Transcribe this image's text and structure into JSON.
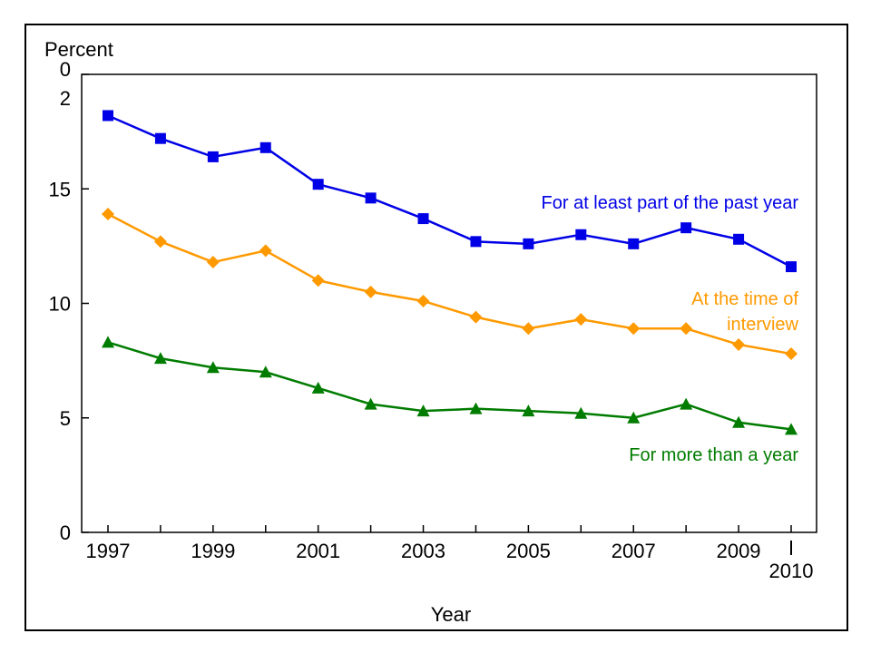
{
  "chart_data": {
    "type": "line",
    "ylabel": "Percent",
    "xlabel": "Year",
    "ylim": [
      0,
      20
    ],
    "y_ticks": [
      0,
      5,
      10,
      15,
      20
    ],
    "y_tick_labels": [
      "0",
      "5",
      "10",
      "15",
      "0\n2"
    ],
    "x": [
      1997,
      1998,
      1999,
      2000,
      2001,
      2002,
      2003,
      2004,
      2005,
      2006,
      2007,
      2008,
      2009,
      2010
    ],
    "x_tick_labels": [
      {
        "year": 1997,
        "label": "1997"
      },
      {
        "year": 1999,
        "label": "1999"
      },
      {
        "year": 2001,
        "label": "2001"
      },
      {
        "year": 2003,
        "label": "2003"
      },
      {
        "year": 2005,
        "label": "2005"
      },
      {
        "year": 2007,
        "label": "2007"
      },
      {
        "year": 2009,
        "label": "2009"
      },
      {
        "year": 2010,
        "label": "2010"
      }
    ],
    "grid": false,
    "series": [
      {
        "name": "For at least part of the past year",
        "color": "#0000e6",
        "marker": "square",
        "values": [
          18.2,
          17.2,
          16.4,
          16.8,
          15.2,
          14.6,
          13.7,
          12.7,
          12.6,
          13.0,
          12.6,
          13.3,
          12.8,
          11.6
        ]
      },
      {
        "name": "At the time of interview",
        "name_lines": [
          "At the time of",
          "interview"
        ],
        "color": "#ff9900",
        "marker": "diamond",
        "values": [
          13.9,
          12.7,
          11.8,
          12.3,
          11.0,
          10.5,
          10.1,
          9.4,
          8.9,
          9.3,
          8.9,
          8.9,
          8.2,
          7.8
        ]
      },
      {
        "name": "For more than a year",
        "color": "#007c00",
        "marker": "triangle",
        "values": [
          8.3,
          7.6,
          7.2,
          7.0,
          6.3,
          5.6,
          5.3,
          5.4,
          5.3,
          5.2,
          5.0,
          5.6,
          4.8,
          4.5
        ]
      }
    ]
  }
}
